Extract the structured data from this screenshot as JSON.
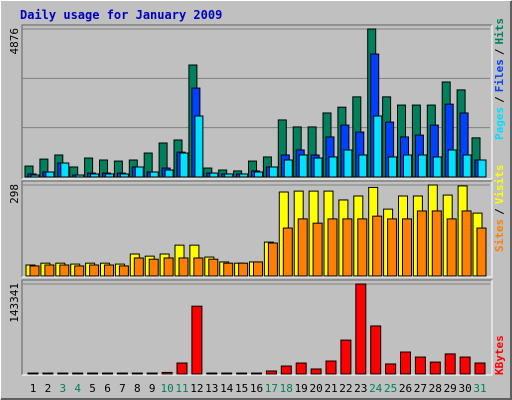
{
  "chart_data": [
    {
      "type": "bar",
      "title": "Daily usage for January 2009",
      "legend_separator": "/",
      "ylim": [
        0,
        4876
      ],
      "yticks": [
        4876
      ],
      "series": [
        {
          "name": "Hits",
          "color": "#00805c",
          "values": [
            360,
            590,
            725,
            330,
            625,
            560,
            525,
            560,
            790,
            1120,
            1220,
            3690,
            295,
            230,
            200,
            525,
            660,
            1880,
            1650,
            1650,
            2110,
            2300,
            2640,
            4876,
            2640,
            2370,
            2370,
            2370,
            3130,
            2870,
            1290
          ]
        },
        {
          "name": "Files",
          "color": "#0040ff",
          "values": [
            100,
            165,
            460,
            65,
            130,
            130,
            130,
            330,
            165,
            295,
            820,
            2930,
            130,
            100,
            100,
            200,
            330,
            725,
            890,
            725,
            1320,
            1710,
            1480,
            4050,
            1810,
            1320,
            1380,
            1710,
            2400,
            2110,
            560
          ]
        },
        {
          "name": "Pages",
          "color": "#00e0ff",
          "values": [
            65,
            165,
            460,
            65,
            100,
            100,
            100,
            330,
            165,
            230,
            790,
            2010,
            130,
            100,
            100,
            165,
            330,
            560,
            725,
            625,
            660,
            890,
            725,
            2010,
            660,
            725,
            725,
            660,
            890,
            725,
            560
          ]
        }
      ]
    },
    {
      "type": "bar",
      "legend_separator": "/",
      "ylim": [
        0,
        298
      ],
      "yticks": [
        298
      ],
      "series": [
        {
          "name": "Visits",
          "color": "#ffff00",
          "values": [
            36,
            42,
            42,
            39,
            42,
            42,
            39,
            72,
            65,
            72,
            101,
            101,
            62,
            46,
            42,
            46,
            111,
            275,
            278,
            278,
            278,
            249,
            262,
            290,
            219,
            262,
            262,
            298,
            265,
            295,
            206
          ]
        },
        {
          "name": "Sites",
          "color": "#ff8000",
          "values": [
            33,
            36,
            36,
            33,
            36,
            36,
            33,
            59,
            55,
            59,
            59,
            59,
            55,
            42,
            42,
            46,
            108,
            157,
            187,
            173,
            187,
            187,
            187,
            196,
            187,
            187,
            213,
            213,
            187,
            213,
            157
          ]
        }
      ]
    },
    {
      "type": "bar",
      "ylim": [
        0,
        143341
      ],
      "yticks": [
        143341
      ],
      "categories": [
        "1",
        "2",
        "3",
        "4",
        "5",
        "6",
        "7",
        "8",
        "9",
        "10",
        "11",
        "12",
        "13",
        "14",
        "15",
        "16",
        "17",
        "18",
        "19",
        "20",
        "21",
        "22",
        "23",
        "24",
        "25",
        "26",
        "27",
        "28",
        "29",
        "30",
        "31"
      ],
      "highlighted_categories": [
        2,
        3,
        9,
        10,
        16,
        17,
        23,
        24,
        30
      ],
      "highlight_color": "#00805c",
      "series": [
        {
          "name": "KBytes",
          "color": "#ff0000",
          "values": [
            1500,
            1500,
            1500,
            1500,
            1500,
            1500,
            1500,
            1500,
            1500,
            2500,
            17500,
            108000,
            1500,
            1500,
            1500,
            1500,
            4800,
            12700,
            17500,
            8000,
            20700,
            54000,
            143341,
            76500,
            16000,
            35000,
            27000,
            19000,
            32000,
            27000,
            17500
          ]
        }
      ]
    }
  ]
}
